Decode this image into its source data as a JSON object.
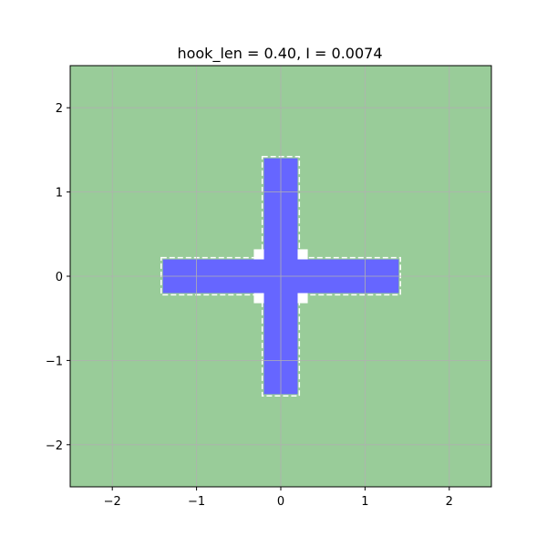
{
  "chart_data": {
    "type": "heatmap",
    "title": "hook_len = 0.40,  I = 0.0074",
    "xlabel": "",
    "ylabel": "",
    "xlim": [
      -2.5,
      2.5
    ],
    "ylim": [
      -2.5,
      2.5
    ],
    "xticks": [
      -2,
      -1,
      0,
      1,
      2
    ],
    "yticks": [
      -2,
      -1,
      0,
      1,
      2
    ],
    "xtick_labels": [
      "−2",
      "−1",
      "0",
      "1",
      "2"
    ],
    "ytick_labels": [
      "−2",
      "−1",
      "0",
      "1",
      "2"
    ],
    "grid": true,
    "legend": "none",
    "regions": {
      "background_color": "#99cc99",
      "cross_color": "#6666ff",
      "halo_color": "#ffffff",
      "vertical_bar": {
        "x": [
          -0.2,
          0.2
        ],
        "y": [
          -1.4,
          1.4
        ]
      },
      "horizontal_bar": {
        "x": [
          -1.4,
          1.4
        ],
        "y": [
          -0.2,
          0.2
        ]
      },
      "hooks": [
        {
          "corner": "top-left",
          "x": [
            -0.32,
            -0.2
          ],
          "y": [
            0.2,
            0.32
          ]
        },
        {
          "corner": "top-right",
          "x": [
            0.2,
            0.32
          ],
          "y": [
            0.2,
            0.32
          ]
        },
        {
          "corner": "bottom-left",
          "x": [
            -0.32,
            -0.2
          ],
          "y": [
            -0.32,
            -0.2
          ]
        },
        {
          "corner": "bottom-right",
          "x": [
            0.2,
            0.32
          ],
          "y": [
            -0.32,
            -0.2
          ]
        }
      ]
    },
    "colors": {
      "grid": "#b0b0b0",
      "axes": "#000000"
    }
  }
}
